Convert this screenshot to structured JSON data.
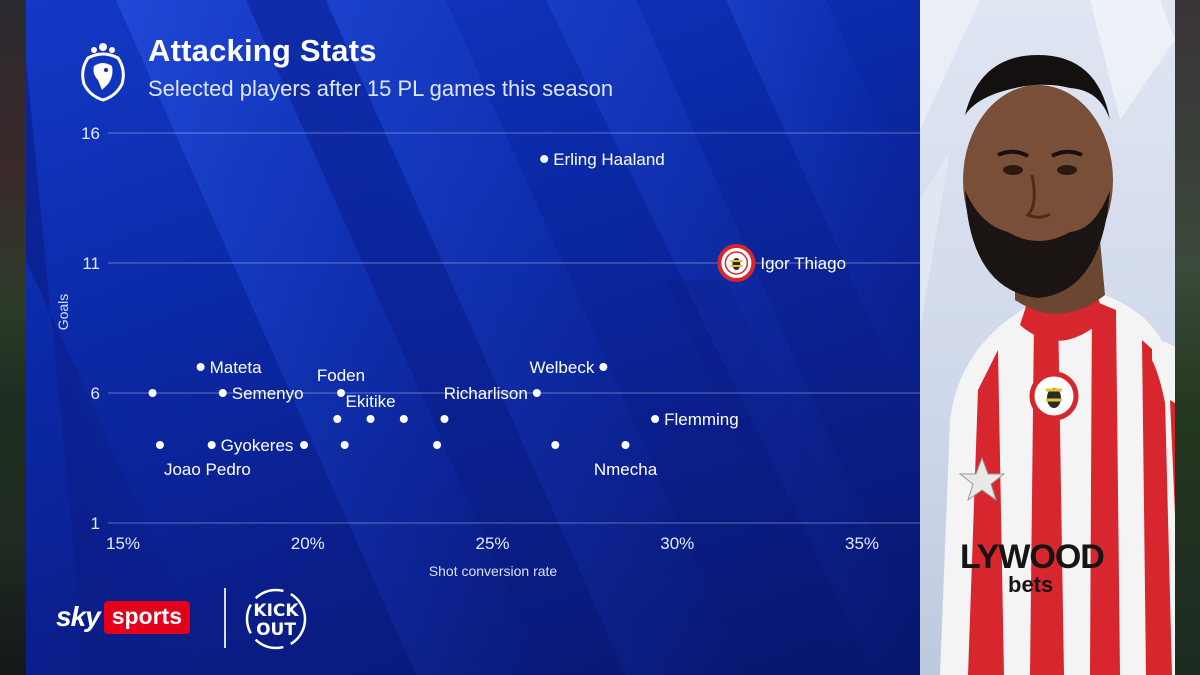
{
  "header": {
    "title": "Attacking Stats",
    "subtitle": "Selected players after 15 PL games this season"
  },
  "branding": {
    "broadcaster_sky": "sky",
    "broadcaster_sports": "sports",
    "campaign_text_top": "KICK",
    "campaign_text_bottom": "OUT",
    "kit_sponsor_top": "LYWOOD",
    "kit_sponsor_bottom": "bets"
  },
  "colors": {
    "panel_blue": "#0b2aa8",
    "sky_red": "#e4001b",
    "brentford_red": "#d7262e"
  },
  "chart_data": {
    "type": "scatter",
    "title": "Attacking Stats",
    "subtitle": "Selected players after 15 PL games this season",
    "xlabel": "Shot conversion rate",
    "ylabel": "Goals",
    "xlim": [
      15,
      37
    ],
    "ylim": [
      1,
      16
    ],
    "x_ticks": [
      15,
      20,
      25,
      30,
      35
    ],
    "x_tick_labels": [
      "15%",
      "20%",
      "25%",
      "30%",
      "35%"
    ],
    "y_ticks": [
      16,
      11,
      6,
      1
    ],
    "y_tick_labels": [
      "16",
      "11",
      "6",
      "1"
    ],
    "grid": "horizontal",
    "highlight_icon": "brentford-crest-icon",
    "points": [
      {
        "x": 26.4,
        "y": 15,
        "label": "Erling Haaland",
        "label_pos": "right"
      },
      {
        "x": 31.6,
        "y": 11,
        "label": "Igor Thiago",
        "label_pos": "right",
        "highlight": true
      },
      {
        "x": 17.1,
        "y": 7,
        "label": "Mateta",
        "label_pos": "right"
      },
      {
        "x": 28.0,
        "y": 7,
        "label": "Welbeck",
        "label_pos": "left"
      },
      {
        "x": 15.8,
        "y": 6,
        "label": "",
        "label_pos": "none"
      },
      {
        "x": 17.7,
        "y": 6,
        "label": "Semenyo",
        "label_pos": "right"
      },
      {
        "x": 20.9,
        "y": 6,
        "label": "Foden",
        "label_pos": "above"
      },
      {
        "x": 26.2,
        "y": 6,
        "label": "Richarlison",
        "label_pos": "left"
      },
      {
        "x": 20.8,
        "y": 5,
        "label": "",
        "label_pos": "none"
      },
      {
        "x": 21.7,
        "y": 5,
        "label": "Ekitike",
        "label_pos": "above"
      },
      {
        "x": 22.6,
        "y": 5,
        "label": "",
        "label_pos": "none"
      },
      {
        "x": 23.7,
        "y": 5,
        "label": "",
        "label_pos": "none"
      },
      {
        "x": 29.4,
        "y": 5,
        "label": "Flemming",
        "label_pos": "right"
      },
      {
        "x": 16.0,
        "y": 4,
        "label": "Joao Pedro",
        "label_pos": "below"
      },
      {
        "x": 17.4,
        "y": 4,
        "label": "Gyokeres",
        "label_pos": "right"
      },
      {
        "x": 19.9,
        "y": 4,
        "label": "",
        "label_pos": "none"
      },
      {
        "x": 21.0,
        "y": 4,
        "label": "",
        "label_pos": "none"
      },
      {
        "x": 23.5,
        "y": 4,
        "label": "",
        "label_pos": "none"
      },
      {
        "x": 26.7,
        "y": 4,
        "label": "",
        "label_pos": "none"
      },
      {
        "x": 28.6,
        "y": 4,
        "label": "Nmecha",
        "label_pos": "below"
      }
    ]
  }
}
